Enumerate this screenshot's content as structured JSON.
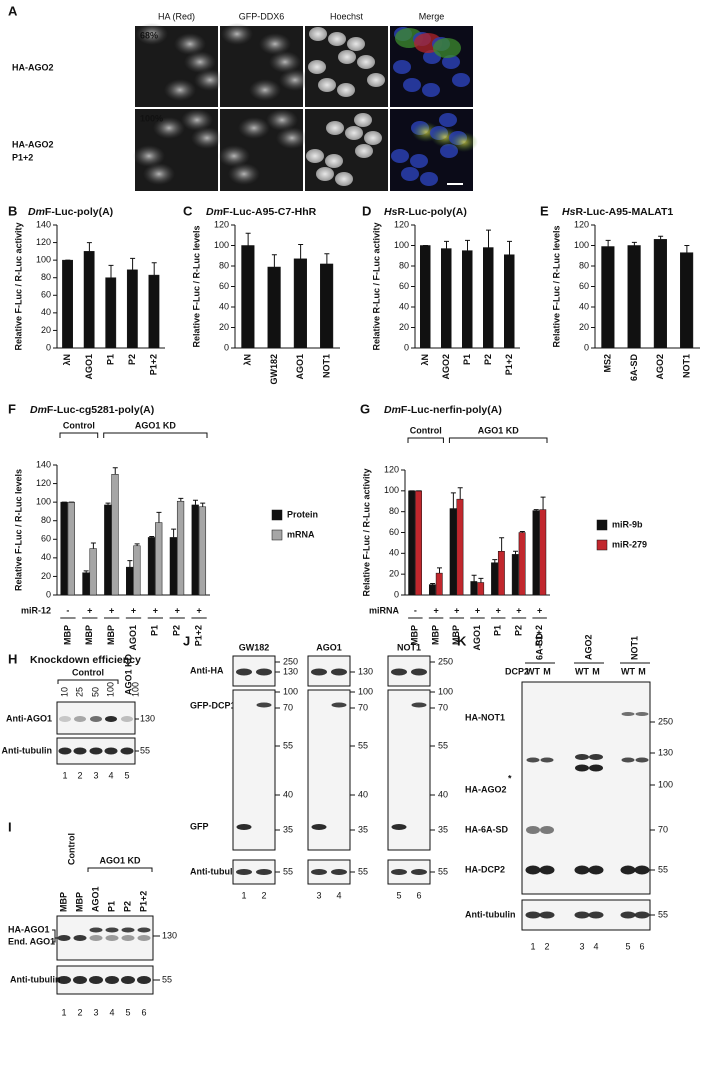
{
  "chart_data": [
    {
      "type": "bar",
      "letter": "B",
      "species": "Dm",
      "title": "F-Luc-poly(A)",
      "ylabel": "Relative F-Luc / R-Luc activity",
      "categories": [
        "λN",
        "AGO1",
        "P1",
        "P2",
        "P1+2"
      ],
      "values": [
        100,
        110,
        80,
        89,
        83
      ],
      "errors": [
        0,
        10,
        14,
        13,
        14
      ],
      "color": "#111111",
      "ylim": [
        0,
        140
      ],
      "yticks": [
        0,
        20,
        40,
        60,
        80,
        100,
        120,
        140
      ]
    },
    {
      "type": "bar",
      "letter": "C",
      "species": "Dm",
      "title": "F-Luc-A95-C7-HhR",
      "ylabel": "Relative F-Luc / R-Luc levels",
      "categories": [
        "λN",
        "GW182",
        "AGO1",
        "NOT1"
      ],
      "values": [
        100,
        79,
        87,
        82
      ],
      "errors": [
        12,
        12,
        14,
        10
      ],
      "color": "#111111",
      "ylim": [
        0,
        120
      ],
      "yticks": [
        0,
        20,
        40,
        60,
        80,
        100,
        120
      ]
    },
    {
      "type": "bar",
      "letter": "D",
      "species": "Hs",
      "title": "R-Luc-poly(A)",
      "ylabel": "Relative R-Luc / F-Luc activity",
      "categories": [
        "λN",
        "AGO2",
        "P1",
        "P2",
        "P1+2"
      ],
      "values": [
        100,
        97,
        95,
        98,
        91
      ],
      "errors": [
        0,
        7,
        10,
        17,
        13
      ],
      "color": "#111111",
      "ylim": [
        0,
        120
      ],
      "yticks": [
        0,
        20,
        40,
        60,
        80,
        100,
        120
      ]
    },
    {
      "type": "bar",
      "letter": "E",
      "species": "Hs",
      "title": "R-Luc-A95-MALAT1",
      "ylabel": "Relative F-Luc / R-Luc levels",
      "categories": [
        "MS2",
        "6A-SD",
        "AGO2",
        "NOT1"
      ],
      "values": [
        99,
        100,
        106,
        93
      ],
      "errors": [
        6,
        3,
        3,
        7
      ],
      "color": "#111111",
      "ylim": [
        0,
        120
      ],
      "yticks": [
        0,
        20,
        40,
        60,
        80,
        100,
        120
      ]
    },
    {
      "type": "bar",
      "letter": "F",
      "species": "Dm",
      "title": "F-Luc-cg5281-poly(A)",
      "ylabel": "Relative F-Luc / R-Luc levels",
      "brackets": [
        "Control",
        "AGO1 KD"
      ],
      "treatment_label": "miR-12",
      "treatment": [
        "-",
        "+",
        "+",
        "+",
        "+",
        "+",
        "+"
      ],
      "categories": [
        "MBP",
        "MBP",
        "MBP",
        "AGO1",
        "P1",
        "P2",
        "P1+2"
      ],
      "series": [
        {
          "name": "Protein",
          "color": "#111111",
          "values": [
            100,
            24,
            97,
            30,
            62,
            62,
            97
          ],
          "errors": [
            0,
            2,
            2,
            7,
            1,
            9,
            5
          ]
        },
        {
          "name": "mRNA",
          "color": "#a6a6a6",
          "values": [
            100,
            50,
            130,
            53,
            78,
            101,
            95
          ],
          "errors": [
            0,
            6,
            7,
            2,
            11,
            3,
            4
          ]
        }
      ],
      "ylim": [
        0,
        140
      ],
      "yticks": [
        0,
        20,
        40,
        60,
        80,
        100,
        120,
        140
      ]
    },
    {
      "type": "bar",
      "letter": "G",
      "species": "Dm",
      "title": "F-Luc-nerfin-poly(A)",
      "ylabel": "Relative F-Luc / R-Luc activity",
      "brackets": [
        "Control",
        "AGO1 KD"
      ],
      "treatment_label": "miRNA",
      "treatment": [
        "-",
        "+",
        "+",
        "+",
        "+",
        "+",
        "+"
      ],
      "categories": [
        "MBP",
        "MBP",
        "MBP",
        "AGO1",
        "P1",
        "P2",
        "P1+2"
      ],
      "series": [
        {
          "name": "miR-9b",
          "color": "#111111",
          "values": [
            100,
            10,
            83,
            13,
            31,
            39,
            81
          ],
          "errors": [
            0,
            1,
            15,
            6,
            3,
            3,
            1
          ]
        },
        {
          "name": "miR-279",
          "color": "#c1272d",
          "values": [
            100,
            21,
            92,
            12,
            42,
            60,
            82
          ],
          "errors": [
            0,
            5,
            11,
            4,
            13,
            1,
            12
          ]
        }
      ],
      "ylim": [
        0,
        120
      ],
      "yticks": [
        0,
        20,
        40,
        60,
        80,
        100,
        120
      ]
    }
  ],
  "panels": {
    "A": {
      "letter": "A",
      "columns": [
        "HA (Red)",
        "GFP-DDX6",
        "Hoechst",
        "Merge"
      ],
      "rows": [
        [
          "HA-AGO2"
        ],
        [
          "HA-AGO2",
          "P1+2"
        ]
      ],
      "percent": [
        "68%",
        "100%"
      ]
    },
    "H": {
      "letter": "H",
      "title": "Knockdown efficiency",
      "groups": [
        "Control",
        "AGO1 KD"
      ],
      "amounts": [
        "10",
        "25",
        "50",
        "100",
        "100"
      ],
      "rows": [
        "Anti-AGO1",
        "Anti-tubulin"
      ],
      "markers": [
        "130",
        "55"
      ],
      "lanes": [
        "1",
        "2",
        "3",
        "4",
        "5"
      ]
    },
    "I": {
      "letter": "I",
      "groups": [
        "Control",
        "AGO1 KD"
      ],
      "samples": [
        "MBP",
        "MBP",
        "AGO1",
        "P1",
        "P2",
        "P1+2"
      ],
      "bands": [
        "HA-AGO1",
        "End. AGO1"
      ],
      "tubulin": "Anti-tubulin",
      "markers": [
        "130",
        "55"
      ],
      "lanes": [
        "1",
        "2",
        "3",
        "4",
        "5",
        "6"
      ]
    },
    "J": {
      "letter": "J",
      "rows": [
        "Anti-HA",
        "GFP-DCP1*",
        "GFP",
        "Anti-tubulin"
      ],
      "groups": [
        {
          "name": "GW182",
          "top": [
            "250",
            "130"
          ],
          "mid": [
            "100",
            "70",
            "55",
            "40",
            "35"
          ],
          "bottom": [
            "55"
          ],
          "lanes": [
            "1",
            "2"
          ]
        },
        {
          "name": "AGO1",
          "top": [
            "130"
          ],
          "mid": [
            "100",
            "70",
            "55",
            "40",
            "35"
          ],
          "bottom": [
            "55"
          ],
          "lanes": [
            "3",
            "4"
          ]
        },
        {
          "name": "NOT1",
          "top": [
            "250"
          ],
          "mid": [
            "100",
            "70",
            "55",
            "40",
            "35"
          ],
          "bottom": [
            "55"
          ],
          "lanes": [
            "5",
            "6"
          ]
        }
      ]
    },
    "K": {
      "letter": "K",
      "groups": [
        "6A-SD",
        "AGO2",
        "NOT1"
      ],
      "dcp2": "DCP2",
      "genotypes": [
        [
          "WT",
          "M"
        ],
        [
          "WT",
          "M"
        ],
        [
          "WT",
          "M"
        ]
      ],
      "bands": [
        "HA-NOT1",
        "HA-AGO2",
        "HA-6A-SD",
        "HA-DCP2"
      ],
      "asterisk": "*",
      "tubulin": "Anti-tubulin",
      "markers": [
        "250",
        "130",
        "100",
        "70",
        "55"
      ],
      "tubulin_marker": "55",
      "lanes": [
        "1",
        "2",
        "3",
        "4",
        "5",
        "6"
      ]
    }
  }
}
